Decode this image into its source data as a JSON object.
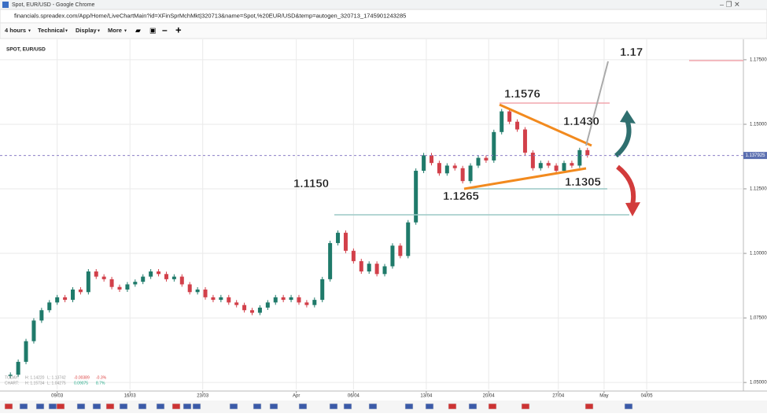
{
  "window": {
    "title": "Spot, EUR/USD - Google Chrome",
    "url": "financials.spreadex.com/App/Home/LiveChartMain?id=XFinSprMchMkt|320713&name=Spot,%20EUR/USD&temp=autogen_320713_1745901243285"
  },
  "toolbar": {
    "items": [
      "4 hours",
      "Technical",
      "Display",
      "More"
    ]
  },
  "info": {
    "today": [
      "TODAY:",
      "H: 1.14220",
      "L: 1.13742",
      "-0.00389",
      "-0.3%"
    ],
    "chart": [
      "CHART:",
      "H: 1.15734",
      "L: 1.04275",
      "0.09075",
      "8.7%"
    ]
  },
  "chart_data": {
    "type": "candlestick",
    "title": "SPOT, EUR/USD",
    "x": [
      4.5,
      5.25,
      6,
      6.75,
      7.5,
      8.25,
      9,
      9.75,
      10.5,
      11.25,
      12,
      12.75,
      13.5,
      14.25,
      15,
      15.75,
      16.5,
      17.25,
      18,
      18.75,
      19.5,
      20.25,
      21,
      21.75,
      22.5,
      23.25,
      24,
      24.75,
      25.5,
      26.25,
      27,
      27.75,
      28.5,
      29.25,
      30,
      30.75,
      31.5,
      32.25,
      33,
      33.75,
      34.5,
      35.25,
      36,
      36.75,
      37.5,
      38.25,
      39,
      39.75,
      40.5,
      41.25,
      42,
      42.75,
      43.5,
      44.25,
      45,
      45.75,
      46.5,
      47.25,
      48,
      48.75,
      49.5,
      50.25,
      51,
      51.75,
      52.5,
      53.25,
      54,
      54.75,
      55.5,
      56.25,
      57,
      57.75,
      58.5,
      59.25,
      60
    ],
    "values": [
      1.053,
      1.058,
      1.066,
      1.074,
      1.078,
      1.081,
      1.083,
      1.082,
      1.086,
      1.085,
      1.093,
      1.091,
      1.09,
      1.087,
      1.086,
      1.088,
      1.089,
      1.091,
      1.093,
      1.092,
      1.09,
      1.091,
      1.088,
      1.085,
      1.086,
      1.083,
      1.082,
      1.083,
      1.081,
      1.08,
      1.078,
      1.077,
      1.079,
      1.081,
      1.083,
      1.082,
      1.083,
      1.081,
      1.08,
      1.082,
      1.09,
      1.104,
      1.108,
      1.101,
      1.097,
      1.093,
      1.096,
      1.092,
      1.095,
      1.103,
      1.099,
      1.112,
      1.132,
      1.138,
      1.135,
      1.131,
      1.134,
      1.133,
      1.128,
      1.134,
      1.137,
      1.136,
      1.147,
      1.155,
      1.151,
      1.148,
      1.139,
      1.133,
      1.135,
      1.134,
      1.132,
      1.135,
      1.134,
      1.14,
      1.138
    ],
    "up_color": "#1f7a6a",
    "down_color": "#d2404a",
    "xlim": [
      3.5,
      75
    ],
    "xticks": [
      {
        "value": 9,
        "label": "09/03"
      },
      {
        "value": 16,
        "label": "16/03"
      },
      {
        "value": 23,
        "label": "23/03"
      },
      {
        "value": 32,
        "label": "Apr"
      },
      {
        "value": 37.5,
        "label": "06/04"
      },
      {
        "value": 44.5,
        "label": "13/04"
      },
      {
        "value": 50.5,
        "label": "20/04"
      },
      {
        "value": 57.2,
        "label": "27/04"
      },
      {
        "value": 61.6,
        "label": "May"
      },
      {
        "value": 65.7,
        "label": "04/05"
      }
    ],
    "ylim": [
      1.0473,
      1.1829
    ],
    "yticks": [
      {
        "value": 1.05,
        "label": "1.05000"
      },
      {
        "value": 1.075,
        "label": "1.07500"
      },
      {
        "value": 1.1,
        "label": "1.10000"
      },
      {
        "value": 1.125,
        "label": "1.12500"
      },
      {
        "value": 1.15,
        "label": "1.15000"
      },
      {
        "value": 1.175,
        "label": "1.17500"
      }
    ],
    "grid": true,
    "current_price": {
      "value": 1.137925,
      "label": "1.137925"
    },
    "annotations": [
      "1.17",
      "1.1576",
      "1.1430",
      "1.1305",
      "1.1265",
      "1.1150"
    ]
  }
}
